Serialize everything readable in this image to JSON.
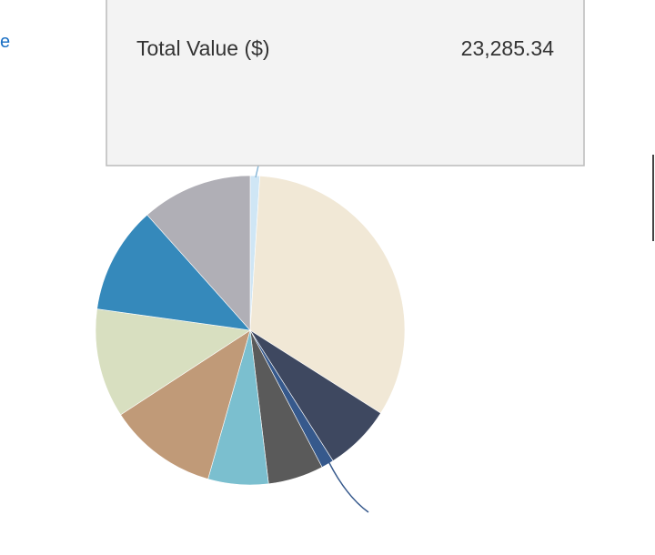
{
  "link_text": "e",
  "tooltip": {
    "label": "Total Value ($)",
    "value": "23,285.34"
  },
  "chart_data": {
    "type": "pie",
    "values": [
      1,
      33,
      7,
      1.3,
      5.8,
      6.3,
      11.4,
      11.4,
      11.2,
      11.6
    ],
    "colors": [
      "#cfe6f5",
      "#f1e8d6",
      "#3e4860",
      "#36598c",
      "#5a5a5a",
      "#7bbfcf",
      "#c09a78",
      "#d8dfc0",
      "#3589bb",
      "#b0afb6"
    ]
  }
}
